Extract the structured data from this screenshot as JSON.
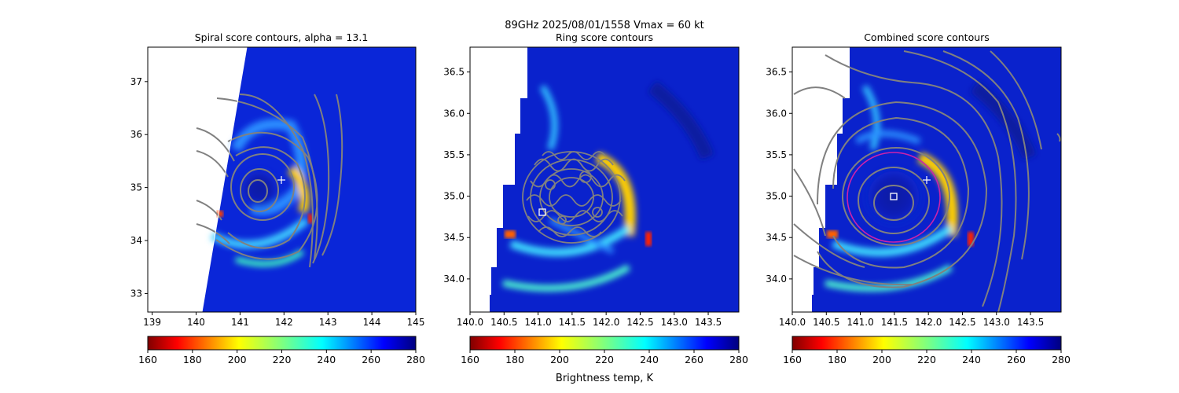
{
  "figure": {
    "suptitle_line1": "89GHz  2025/08/01/1558    Vmax = 60 kt",
    "cbar_label": "Brightness temp, K"
  },
  "colors": {
    "contour": "#808080",
    "ring": "#cc22aa",
    "marker": "#ffffff",
    "swath_edge": "#ffffff"
  },
  "chart_data": [
    {
      "type": "heatmap",
      "title": "Spiral score contours, alpha = 13.1",
      "xlim": [
        138.9,
        145.0
      ],
      "ylim": [
        32.65,
        37.65
      ],
      "xticks": [
        "139",
        "140",
        "141",
        "142",
        "143",
        "144",
        "145"
      ],
      "yticks": [
        "33",
        "34",
        "35",
        "36",
        "37"
      ],
      "center_plus": [
        141.95,
        35.17
      ],
      "swath_edge": [
        [
          140.05,
          32.65
        ],
        [
          141.15,
          37.65
        ]
      ],
      "colorbar": {
        "min": 160,
        "max": 280,
        "ticks": [
          "160",
          "180",
          "200",
          "220",
          "240",
          "260",
          "280"
        ],
        "cmap": "jet_r"
      }
    },
    {
      "type": "heatmap",
      "title": "Ring score contours",
      "xlim": [
        140.0,
        143.95
      ],
      "ylim": [
        33.6,
        36.8
      ],
      "xticks": [
        "140.0",
        "140.5",
        "141.0",
        "141.5",
        "142.0",
        "142.5",
        "143.0",
        "143.5"
      ],
      "yticks": [
        "34.0",
        "34.5",
        "35.0",
        "35.5",
        "36.0",
        "36.5"
      ],
      "center_square": [
        141.05,
        34.77
      ],
      "colorbar": {
        "min": 160,
        "max": 280,
        "ticks": [
          "160",
          "180",
          "200",
          "220",
          "240",
          "260",
          "280"
        ],
        "cmap": "jet_r"
      }
    },
    {
      "type": "heatmap",
      "title": "Combined score contours",
      "xlim": [
        140.0,
        143.95
      ],
      "ylim": [
        33.6,
        36.8
      ],
      "xticks": [
        "140.0",
        "140.5",
        "141.0",
        "141.5",
        "142.0",
        "142.5",
        "143.0",
        "143.5"
      ],
      "yticks": [
        "34.0",
        "34.5",
        "35.0",
        "35.5",
        "36.0",
        "36.5"
      ],
      "center_square": [
        141.48,
        34.98
      ],
      "center_plus": [
        141.95,
        35.17
      ],
      "ring": {
        "center": [
          141.48,
          34.98
        ],
        "radius_lon": 0.67,
        "radius_lat": 0.55
      },
      "colorbar": {
        "min": 160,
        "max": 280,
        "ticks": [
          "160",
          "180",
          "200",
          "220",
          "240",
          "260",
          "280"
        ],
        "cmap": "jet_r"
      }
    }
  ]
}
